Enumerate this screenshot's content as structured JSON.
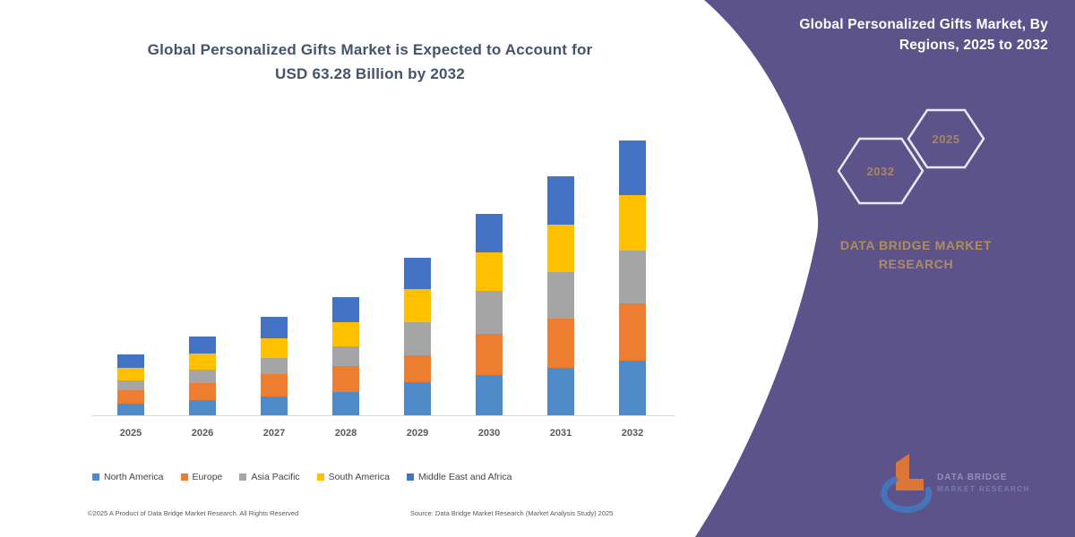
{
  "chart": {
    "title_line1": "Global Personalized Gifts Market is Expected to Account for",
    "title_line2": "USD 63.28 Billion by 2032"
  },
  "chart_data": {
    "type": "bar",
    "stacked": true,
    "title": "Global Personalized Gifts Market is Expected to Account for USD 63.28 Billion by 2032",
    "unit": "USD Billion (values estimated from bar heights)",
    "categories": [
      "2025",
      "2026",
      "2027",
      "2028",
      "2029",
      "2030",
      "2031",
      "2032"
    ],
    "series": [
      {
        "name": "North America",
        "color": "#4F8BC9",
        "values": [
          2.7,
          3.5,
          4.4,
          5.3,
          7.6,
          9.2,
          10.9,
          12.6
        ]
      },
      {
        "name": "Europe",
        "color": "#ED7D31",
        "values": [
          3.1,
          4.0,
          5.0,
          6.0,
          6.2,
          9.6,
          11.3,
          13.2
        ]
      },
      {
        "name": "Asia Pacific",
        "color": "#A5A5A5",
        "values": [
          2.3,
          3.0,
          3.8,
          4.6,
          7.6,
          9.8,
          10.7,
          12.1
        ]
      },
      {
        "name": "South America",
        "color": "#FFC000",
        "values": [
          2.9,
          3.7,
          4.6,
          5.5,
          7.6,
          8.9,
          11.1,
          12.8
        ]
      },
      {
        "name": "Middle East and Africa",
        "color": "#4472C4",
        "values": [
          3.0,
          3.9,
          4.9,
          5.8,
          7.2,
          8.9,
          11.0,
          12.58
        ]
      }
    ],
    "totals": [
      14.0,
      18.1,
      22.7,
      27.2,
      36.2,
      46.4,
      55.0,
      63.28
    ],
    "ylim": [
      0,
      65
    ],
    "grid": false,
    "axis_line": "bottom only",
    "legend_position": "bottom"
  },
  "footer": {
    "left": "©2025 A Product of Data Bridge Market Research. All Rights Reserved",
    "right": "Source: Data Bridge Market Research (Market Analysis Study) 2025"
  },
  "sidebar": {
    "title_line1": "Global Personalized Gifts Market, By",
    "title_line2": "Regions, 2025 to 2032",
    "hexagons": [
      {
        "label": "2032"
      },
      {
        "label": "2025"
      }
    ],
    "brand_line1": "DATA BRIDGE MARKET",
    "brand_line2": "RESEARCH",
    "logo": {
      "wordmark_line1": "DATA BRIDGE",
      "wordmark_line2": "MARKET RESEARCH"
    },
    "colors": {
      "panel": "#5D538B",
      "brand_text": "#B08C5E",
      "hexagon_outline": "#ECE9F4",
      "hexagon_label": "#A8875E",
      "logo_orange": "#E87B30",
      "logo_blue": "#3F7EC9",
      "title_text": "#FFFFFF"
    }
  }
}
